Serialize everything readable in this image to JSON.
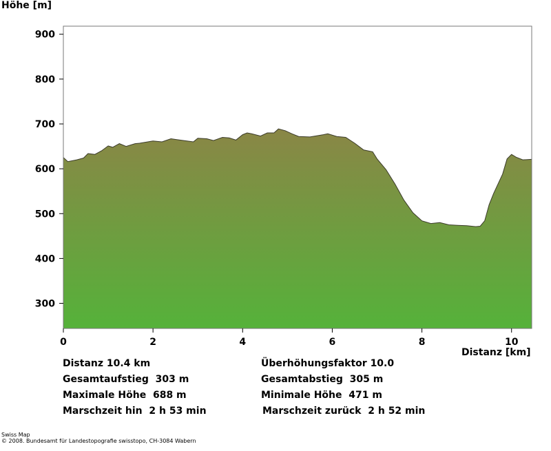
{
  "chart_data": {
    "type": "area",
    "ylabel": "Höhe [m]",
    "xlabel": "Distanz [km]",
    "xlim": [
      0,
      10.45
    ],
    "ylim": [
      244,
      918
    ],
    "xticks": [
      0,
      2,
      4,
      6,
      8,
      10
    ],
    "yticks": [
      300,
      400,
      500,
      600,
      700,
      800,
      900
    ],
    "grid": false,
    "fill_gradient": {
      "top": "#8a8646",
      "bottom": "#55b23a"
    },
    "line_color": "#3a3a2a",
    "x": [
      0,
      0.1,
      0.3,
      0.45,
      0.55,
      0.7,
      0.85,
      1.0,
      1.1,
      1.25,
      1.4,
      1.6,
      1.7,
      2.0,
      2.2,
      2.4,
      2.6,
      2.9,
      3.0,
      3.2,
      3.35,
      3.55,
      3.7,
      3.85,
      4.0,
      4.1,
      4.2,
      4.4,
      4.55,
      4.7,
      4.8,
      4.95,
      5.1,
      5.25,
      5.5,
      5.8,
      5.9,
      6.1,
      6.3,
      6.5,
      6.7,
      6.9,
      7.0,
      7.2,
      7.4,
      7.6,
      7.8,
      8.0,
      8.2,
      8.4,
      8.6,
      8.8,
      9.0,
      9.2,
      9.3,
      9.4,
      9.5,
      9.6,
      9.8,
      9.9,
      10.0,
      10.1,
      10.25,
      10.45
    ],
    "y": [
      625,
      616,
      620,
      624,
      634,
      632,
      640,
      651,
      648,
      656,
      650,
      656,
      657,
      662,
      660,
      667,
      664,
      660,
      668,
      667,
      663,
      670,
      669,
      664,
      676,
      680,
      678,
      673,
      680,
      680,
      689,
      685,
      678,
      672,
      671,
      676,
      678,
      672,
      670,
      657,
      642,
      638,
      622,
      598,
      566,
      530,
      502,
      484,
      478,
      480,
      475,
      474,
      473,
      471,
      472,
      484,
      520,
      545,
      588,
      622,
      632,
      626,
      620,
      621
    ]
  },
  "stats": {
    "distanz": "Distanz 10.4 km",
    "gesamtaufstieg": "Gesamtaufstieg  303 m",
    "maximale_hoehe": "Maximale Höhe  688 m",
    "marschzeit_hin": "Marschzeit hin  2 h 53 min",
    "ueberhoehungsfaktor": "Überhöhungsfaktor 10.0",
    "gesamtabstieg": "Gesamtabstieg  305 m",
    "minimale_hoehe": "Minimale Höhe  471 m",
    "marschzeit_zurueck": "Marschzeit zurück  2 h 52 min"
  },
  "footer": {
    "line1": "Swiss Map",
    "line2": "© 2008. Bundesamt für Landestopografie swisstopo, CH-3084 Wabern"
  }
}
